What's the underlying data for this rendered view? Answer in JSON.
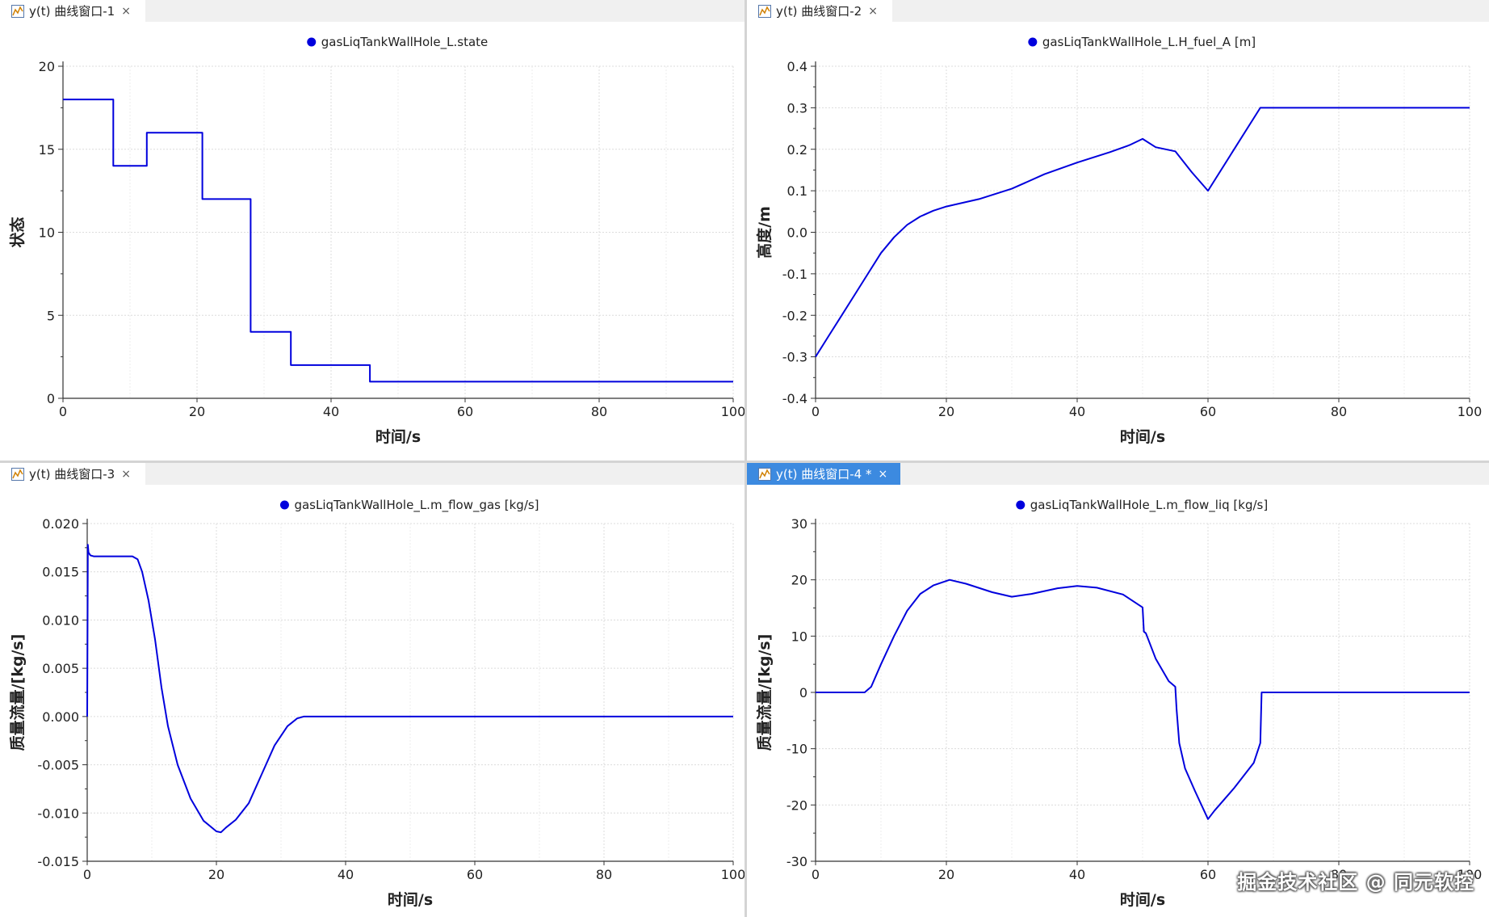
{
  "panes": [
    {
      "tab": {
        "title": "y(t) 曲线窗口-1",
        "active": false,
        "close": "×"
      },
      "chart_data": {
        "type": "line",
        "legend": "gasLiqTankWallHole_L.state",
        "xlabel": "时间/s",
        "ylabel": "状态",
        "xlim": [
          0,
          100
        ],
        "ylim": [
          0,
          20
        ],
        "xticks": [
          0,
          20,
          40,
          60,
          80,
          100
        ],
        "yticks": [
          0,
          5,
          10,
          15,
          20
        ],
        "ytick_labels": [
          "0",
          "5",
          "10",
          "15",
          "20"
        ],
        "series": [
          {
            "name": "gasLiqTankWallHole_L.state",
            "color": "#0000dd",
            "x": [
              0,
              7.5,
              7.5,
              12.5,
              12.5,
              20.8,
              20.8,
              28,
              28,
              34,
              34,
              45.8,
              45.8,
              100
            ],
            "y": [
              18,
              18,
              14,
              14,
              16,
              16,
              12,
              12,
              4,
              4,
              2,
              2,
              1,
              1
            ]
          }
        ]
      }
    },
    {
      "tab": {
        "title": "y(t) 曲线窗口-2",
        "active": false,
        "close": "×"
      },
      "chart_data": {
        "type": "line",
        "legend": "gasLiqTankWallHole_L.H_fuel_A [m]",
        "xlabel": "时间/s",
        "ylabel": "高度/m",
        "xlim": [
          0,
          100
        ],
        "ylim": [
          -0.4,
          0.4
        ],
        "xticks": [
          0,
          20,
          40,
          60,
          80,
          100
        ],
        "yticks": [
          -0.4,
          -0.3,
          -0.2,
          -0.1,
          0,
          0.1,
          0.2,
          0.3,
          0.4
        ],
        "ytick_labels": [
          "-0.4",
          "-0.3",
          "-0.2",
          "-0.1",
          "0.0",
          "0.1",
          "0.2",
          "0.3",
          "0.4"
        ],
        "series": [
          {
            "name": "H_fuel_A",
            "color": "#0000dd",
            "x": [
              0,
              2,
              4,
              6,
              8,
              10,
              12,
              14,
              16,
              18,
              20,
              25,
              30,
              35,
              40,
              45,
              48,
              50,
              52,
              55,
              57.5,
              60,
              64,
              68,
              100
            ],
            "y": [
              -0.3,
              -0.25,
              -0.2,
              -0.15,
              -0.1,
              -0.05,
              -0.012,
              0.018,
              0.038,
              0.052,
              0.062,
              0.08,
              0.105,
              0.14,
              0.168,
              0.193,
              0.21,
              0.225,
              0.205,
              0.195,
              0.145,
              0.1,
              0.2,
              0.3,
              0.3
            ]
          }
        ]
      }
    },
    {
      "tab": {
        "title": "y(t) 曲线窗口-3",
        "active": false,
        "close": "×"
      },
      "chart_data": {
        "type": "line",
        "legend": "gasLiqTankWallHole_L.m_flow_gas [kg/s]",
        "xlabel": "时间/s",
        "ylabel": "质量流量/[kg/s]",
        "xlim": [
          0,
          100
        ],
        "ylim": [
          -0.015,
          0.02
        ],
        "xticks": [
          0,
          20,
          40,
          60,
          80,
          100
        ],
        "yticks": [
          -0.015,
          -0.01,
          -0.005,
          0,
          0.005,
          0.01,
          0.015,
          0.02
        ],
        "ytick_labels": [
          "-0.015",
          "-0.010",
          "-0.005",
          "0.000",
          "0.005",
          "0.010",
          "0.015",
          "0.020"
        ],
        "series": [
          {
            "name": "m_flow_gas",
            "color": "#0000dd",
            "x": [
              0,
              0.1,
              0.2,
              0.5,
              1,
              4,
              7,
              7.8,
              8.5,
              9.5,
              10.5,
              11.5,
              12.5,
              14,
              16,
              18,
              20,
              20.7,
              21.5,
              23,
              25,
              27,
              29,
              31,
              32.5,
              33.5,
              100
            ],
            "y": [
              0,
              0.0178,
              0.017,
              0.0167,
              0.0166,
              0.0166,
              0.0166,
              0.0163,
              0.015,
              0.012,
              0.008,
              0.003,
              -0.001,
              -0.005,
              -0.0085,
              -0.0108,
              -0.0119,
              -0.012,
              -0.0115,
              -0.0107,
              -0.009,
              -0.006,
              -0.003,
              -0.001,
              -0.0002,
              0,
              0
            ]
          }
        ]
      }
    },
    {
      "tab": {
        "title": "y(t) 曲线窗口-4 *",
        "active": true,
        "close": "×"
      },
      "chart_data": {
        "type": "line",
        "legend": "gasLiqTankWallHole_L.m_flow_liq [kg/s]",
        "xlabel": "时间/s",
        "ylabel": "质量流量/[kg/s]",
        "xlim": [
          0,
          100
        ],
        "ylim": [
          -30,
          30
        ],
        "xticks": [
          0,
          20,
          40,
          60,
          80,
          100
        ],
        "yticks": [
          -30,
          -20,
          -10,
          0,
          10,
          20,
          30
        ],
        "ytick_labels": [
          "-30",
          "-20",
          "-10",
          "0",
          "10",
          "20",
          "30"
        ],
        "series": [
          {
            "name": "m_flow_liq",
            "color": "#0000dd",
            "x": [
              0,
              7.5,
              8.5,
              10,
              12,
              14,
              16,
              18,
              20,
              20.5,
              23,
              27,
              30,
              33,
              37,
              40,
              43,
              47,
              50,
              50.2,
              50.5,
              52,
              54,
              55,
              55.2,
              55.6,
              56.5,
              58,
              60,
              61,
              64,
              67,
              68,
              68.2,
              100
            ],
            "y": [
              0,
              0,
              1,
              5,
              10,
              14.5,
              17.5,
              19,
              19.8,
              20,
              19.3,
              17.8,
              17,
              17.5,
              18.5,
              18.9,
              18.6,
              17.4,
              15.1,
              10.8,
              10.5,
              6,
              2,
              1,
              -3,
              -9,
              -13.5,
              -17.5,
              -22.5,
              -21,
              -17,
              -12.5,
              -9,
              0,
              0
            ]
          }
        ]
      }
    }
  ],
  "watermark": "掘金技术社区 @ 同元软控"
}
